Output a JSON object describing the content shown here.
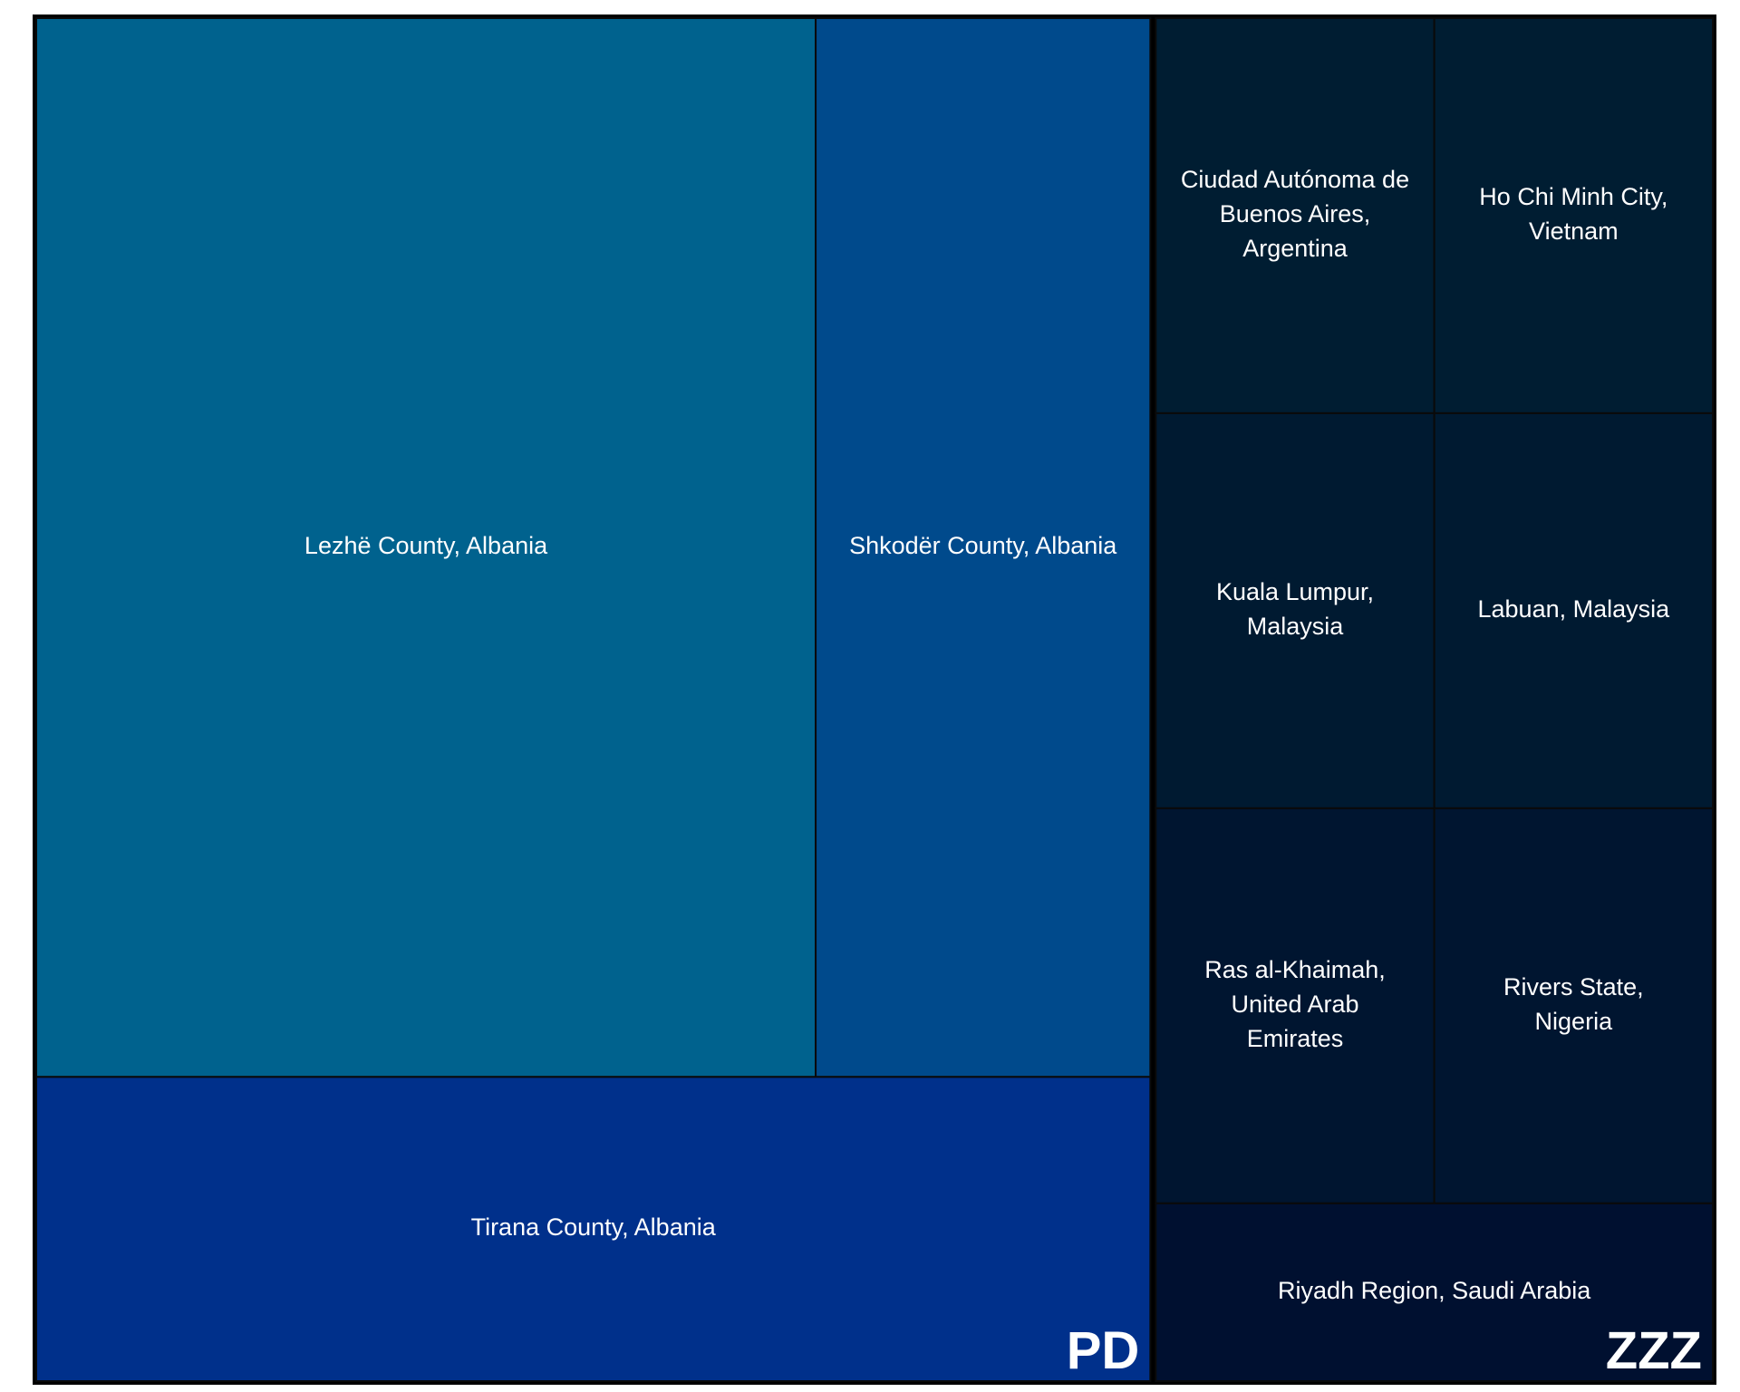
{
  "chart_data": {
    "type": "treemap",
    "title": "",
    "groups": [
      {
        "name": "PD",
        "color": "#00307f",
        "items": [
          {
            "label": "Lezhë County, Albania",
            "value": 7.5,
            "color": "#00628e"
          },
          {
            "label": "Shkodër County, Albania",
            "value": 3.22,
            "color": "#004a8c"
          },
          {
            "label": "Tirana County, Albania",
            "value": 3.08,
            "color": "#00308b"
          }
        ]
      },
      {
        "name": "ZZZ",
        "color": "#00102e",
        "items": [
          {
            "label": "Ciudad Autónoma de Buenos Aires, Argentina",
            "value": 1.0,
            "color": "#001d32"
          },
          {
            "label": "Ho Chi Minh City, Vietnam",
            "value": 1.0,
            "color": "#001d32"
          },
          {
            "label": "Kuala Lumpur, Malaysia",
            "value": 1.0,
            "color": "#001a31"
          },
          {
            "label": "Labuan, Malaysia",
            "value": 1.0,
            "color": "#001a31"
          },
          {
            "label": "Ras al-Khaimah, United Arab Emirates",
            "value": 1.0,
            "color": "#001530"
          },
          {
            "label": "Rivers State, Nigeria",
            "value": 1.0,
            "color": "#001530"
          },
          {
            "label": "Riyadh Region, Saudi Arabia",
            "value": 0.9,
            "color": "#001030"
          }
        ]
      }
    ]
  }
}
